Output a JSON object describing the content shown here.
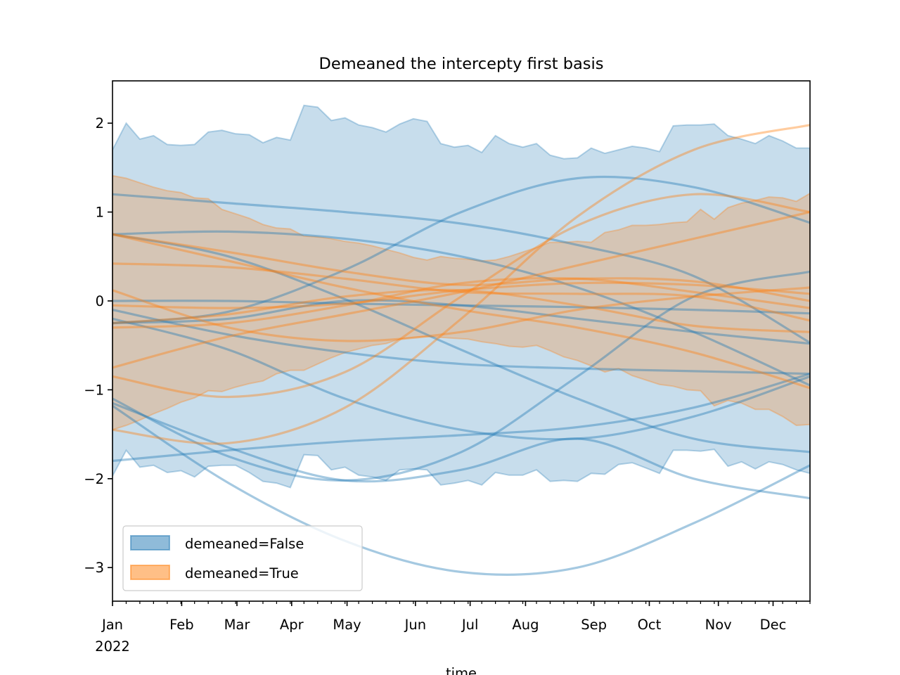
{
  "chart_data": {
    "type": "line",
    "title": "Demeaned the intercepty first basis",
    "xlabel": "time",
    "ylabel": "",
    "x_unit": "week index from start of 2022",
    "xlim": [
      0,
      51
    ],
    "ylim": [
      -3.378,
      2.476
    ],
    "grid": false,
    "legend_placement": "lower-left",
    "y_ticks": [
      {
        "value": 2,
        "label": "2"
      },
      {
        "value": 1,
        "label": "1"
      },
      {
        "value": 0,
        "label": "0"
      },
      {
        "value": -1,
        "label": "−1"
      },
      {
        "value": -2,
        "label": "−2"
      },
      {
        "value": -3,
        "label": "−3"
      }
    ],
    "x_major_ticks": [
      {
        "value": 0,
        "label": "Jan",
        "sublabel": "2022"
      },
      {
        "value": 5.06,
        "label": "Feb"
      },
      {
        "value": 9.1,
        "label": "Mar"
      },
      {
        "value": 13.1,
        "label": "Apr"
      },
      {
        "value": 17.15,
        "label": "May"
      },
      {
        "value": 22.15,
        "label": "Jun"
      },
      {
        "value": 26.15,
        "label": "Jul"
      },
      {
        "value": 30.2,
        "label": "Aug"
      },
      {
        "value": 35.2,
        "label": "Sep"
      },
      {
        "value": 39.25,
        "label": "Oct"
      },
      {
        "value": 44.3,
        "label": "Nov"
      },
      {
        "value": 48.3,
        "label": "Dec"
      }
    ],
    "x_minor_tick_step": 1,
    "colors": {
      "false": "#1f77b4",
      "true": "#ff7f0e"
    },
    "legend": [
      {
        "label": "demeaned=False",
        "color": "#1f77b4"
      },
      {
        "label": "demeaned=True",
        "color": "#ff7f0e"
      }
    ],
    "bands": [
      {
        "name": "demeaned=False",
        "color": "#1f77b4",
        "upper": [
          1.7,
          2.0,
          1.82,
          1.86,
          1.76,
          1.75,
          1.76,
          1.9,
          1.92,
          1.88,
          1.87,
          1.78,
          1.84,
          1.81,
          2.2,
          2.18,
          2.03,
          2.06,
          1.98,
          1.95,
          1.9,
          1.99,
          2.05,
          2.02,
          1.77,
          1.73,
          1.75,
          1.67,
          1.86,
          1.77,
          1.73,
          1.77,
          1.64,
          1.6,
          1.61,
          1.72,
          1.66,
          1.7,
          1.74,
          1.72,
          1.68,
          1.97,
          1.98,
          1.98,
          1.99,
          1.86,
          1.82,
          1.77,
          1.86,
          1.8,
          1.72,
          1.72
        ],
        "lower": [
          -1.97,
          -1.68,
          -1.87,
          -1.85,
          -1.93,
          -1.91,
          -1.98,
          -1.86,
          -1.85,
          -1.85,
          -1.93,
          -2.03,
          -2.05,
          -2.1,
          -1.73,
          -1.74,
          -1.9,
          -1.87,
          -1.96,
          -1.98,
          -2.02,
          -1.9,
          -1.89,
          -1.9,
          -2.07,
          -2.05,
          -2.02,
          -2.07,
          -1.93,
          -1.96,
          -1.96,
          -1.9,
          -2.03,
          -2.02,
          -2.03,
          -1.94,
          -1.95,
          -1.84,
          -1.82,
          -1.88,
          -1.94,
          -1.68,
          -1.68,
          -1.69,
          -1.67,
          -1.86,
          -1.81,
          -1.89,
          -1.81,
          -1.84,
          -1.9,
          -1.94
        ]
      },
      {
        "name": "demeaned=True",
        "color": "#ff7f0e",
        "upper": [
          1.41,
          1.38,
          1.33,
          1.28,
          1.24,
          1.22,
          1.16,
          1.15,
          1.03,
          0.98,
          0.93,
          0.86,
          0.82,
          0.81,
          0.73,
          0.72,
          0.7,
          0.67,
          0.65,
          0.62,
          0.58,
          0.54,
          0.49,
          0.46,
          0.5,
          0.48,
          0.47,
          0.45,
          0.46,
          0.5,
          0.55,
          0.6,
          0.66,
          0.66,
          0.67,
          0.66,
          0.77,
          0.8,
          0.85,
          0.85,
          0.86,
          0.88,
          0.89,
          1.03,
          0.92,
          1.05,
          1.1,
          1.13,
          1.17,
          1.16,
          1.12,
          1.21
        ],
        "lower": [
          -1.45,
          -1.4,
          -1.34,
          -1.27,
          -1.21,
          -1.14,
          -1.09,
          -1.01,
          -1.02,
          -0.97,
          -0.93,
          -0.9,
          -0.82,
          -0.78,
          -0.78,
          -0.71,
          -0.64,
          -0.58,
          -0.54,
          -0.5,
          -0.48,
          -0.43,
          -0.41,
          -0.4,
          -0.41,
          -0.42,
          -0.43,
          -0.46,
          -0.48,
          -0.51,
          -0.52,
          -0.5,
          -0.56,
          -0.63,
          -0.67,
          -0.73,
          -0.8,
          -0.76,
          -0.84,
          -0.89,
          -0.94,
          -0.96,
          -1.0,
          -1.01,
          -1.18,
          -1.12,
          -1.15,
          -1.22,
          -1.22,
          -1.3,
          -1.4,
          -1.39
        ]
      }
    ],
    "curve_knots_x": [
      0,
      8.5,
      17,
      25.5,
      34,
      42.5,
      51
    ],
    "series": [
      {
        "name": "demeaned=False",
        "color": "#1f77b4",
        "values": [
          1.2,
          1.1,
          1.0,
          0.87,
          0.63,
          0.28,
          -0.47
        ]
      },
      {
        "name": "demeaned=False",
        "color": "#1f77b4",
        "values": [
          -0.25,
          -0.12,
          0.35,
          1.0,
          1.38,
          1.28,
          0.88
        ]
      },
      {
        "name": "demeaned=False",
        "color": "#1f77b4",
        "values": [
          0.75,
          0.78,
          0.7,
          0.5,
          0.15,
          -0.35,
          -0.95
        ]
      },
      {
        "name": "demeaned=False",
        "color": "#1f77b4",
        "values": [
          0.75,
          0.5,
          0.02,
          -0.55,
          -1.1,
          -1.55,
          -1.7
        ]
      },
      {
        "name": "demeaned=False",
        "color": "#1f77b4",
        "values": [
          0.0,
          0.0,
          -0.03,
          -0.05,
          -0.07,
          -0.1,
          -0.14
        ]
      },
      {
        "name": "demeaned=False",
        "color": "#1f77b4",
        "values": [
          -0.1,
          -0.38,
          -0.58,
          -0.71,
          -0.76,
          -0.79,
          -0.82
        ]
      },
      {
        "name": "demeaned=False",
        "color": "#1f77b4",
        "values": [
          -0.25,
          -0.2,
          0.0,
          -0.05,
          -0.2,
          -0.35,
          -0.48
        ]
      },
      {
        "name": "demeaned=False",
        "color": "#1f77b4",
        "values": [
          -1.1,
          -1.75,
          -2.02,
          -1.7,
          -0.85,
          0.05,
          0.33
        ]
      },
      {
        "name": "demeaned=False",
        "color": "#1f77b4",
        "values": [
          -0.2,
          -0.55,
          -1.1,
          -1.45,
          -1.55,
          -1.3,
          -0.85
        ]
      },
      {
        "name": "demeaned=False",
        "color": "#1f77b4",
        "values": [
          -1.8,
          -1.68,
          -1.58,
          -1.51,
          -1.42,
          -1.2,
          -0.82
        ]
      },
      {
        "name": "demeaned=False",
        "color": "#1f77b4",
        "values": [
          -1.18,
          -2.05,
          -2.7,
          -3.05,
          -3.0,
          -2.5,
          -1.85
        ]
      },
      {
        "name": "demeaned=False",
        "color": "#1f77b4",
        "values": [
          -1.15,
          -1.65,
          -2.02,
          -1.9,
          -1.55,
          -2.0,
          -2.22
        ]
      },
      {
        "name": "demeaned=True",
        "color": "#ff7f0e",
        "values": [
          -1.45,
          -1.6,
          -1.2,
          -0.2,
          0.95,
          1.7,
          1.98
        ]
      },
      {
        "name": "demeaned=True",
        "color": "#ff7f0e",
        "values": [
          -0.85,
          -1.08,
          -0.8,
          0.05,
          0.85,
          1.2,
          1.0
        ]
      },
      {
        "name": "demeaned=True",
        "color": "#ff7f0e",
        "values": [
          -0.75,
          -0.4,
          -0.15,
          0.1,
          0.4,
          0.7,
          1.0
        ]
      },
      {
        "name": "demeaned=True",
        "color": "#ff7f0e",
        "values": [
          0.75,
          0.55,
          0.33,
          0.18,
          0.25,
          0.22,
          0.0
        ]
      },
      {
        "name": "demeaned=True",
        "color": "#ff7f0e",
        "values": [
          0.75,
          0.45,
          0.15,
          -0.1,
          -0.3,
          -0.58,
          -0.98
        ]
      },
      {
        "name": "demeaned=True",
        "color": "#ff7f0e",
        "values": [
          0.42,
          0.38,
          0.25,
          0.1,
          0.08,
          0.05,
          -0.22
        ]
      },
      {
        "name": "demeaned=True",
        "color": "#ff7f0e",
        "values": [
          0.12,
          -0.3,
          -0.45,
          -0.35,
          -0.1,
          0.05,
          0.15
        ]
      },
      {
        "name": "demeaned=True",
        "color": "#ff7f0e",
        "values": [
          -0.05,
          -0.08,
          -0.03,
          0.12,
          0.2,
          0.18,
          0.08
        ]
      },
      {
        "name": "demeaned=True",
        "color": "#ff7f0e",
        "values": [
          -0.3,
          -0.25,
          -0.05,
          0.2,
          0.25,
          0.1,
          -0.08
        ]
      },
      {
        "name": "demeaned=True",
        "color": "#ff7f0e",
        "values": [
          -0.25,
          -0.15,
          0.05,
          0.12,
          -0.05,
          -0.28,
          -0.35
        ]
      }
    ]
  }
}
